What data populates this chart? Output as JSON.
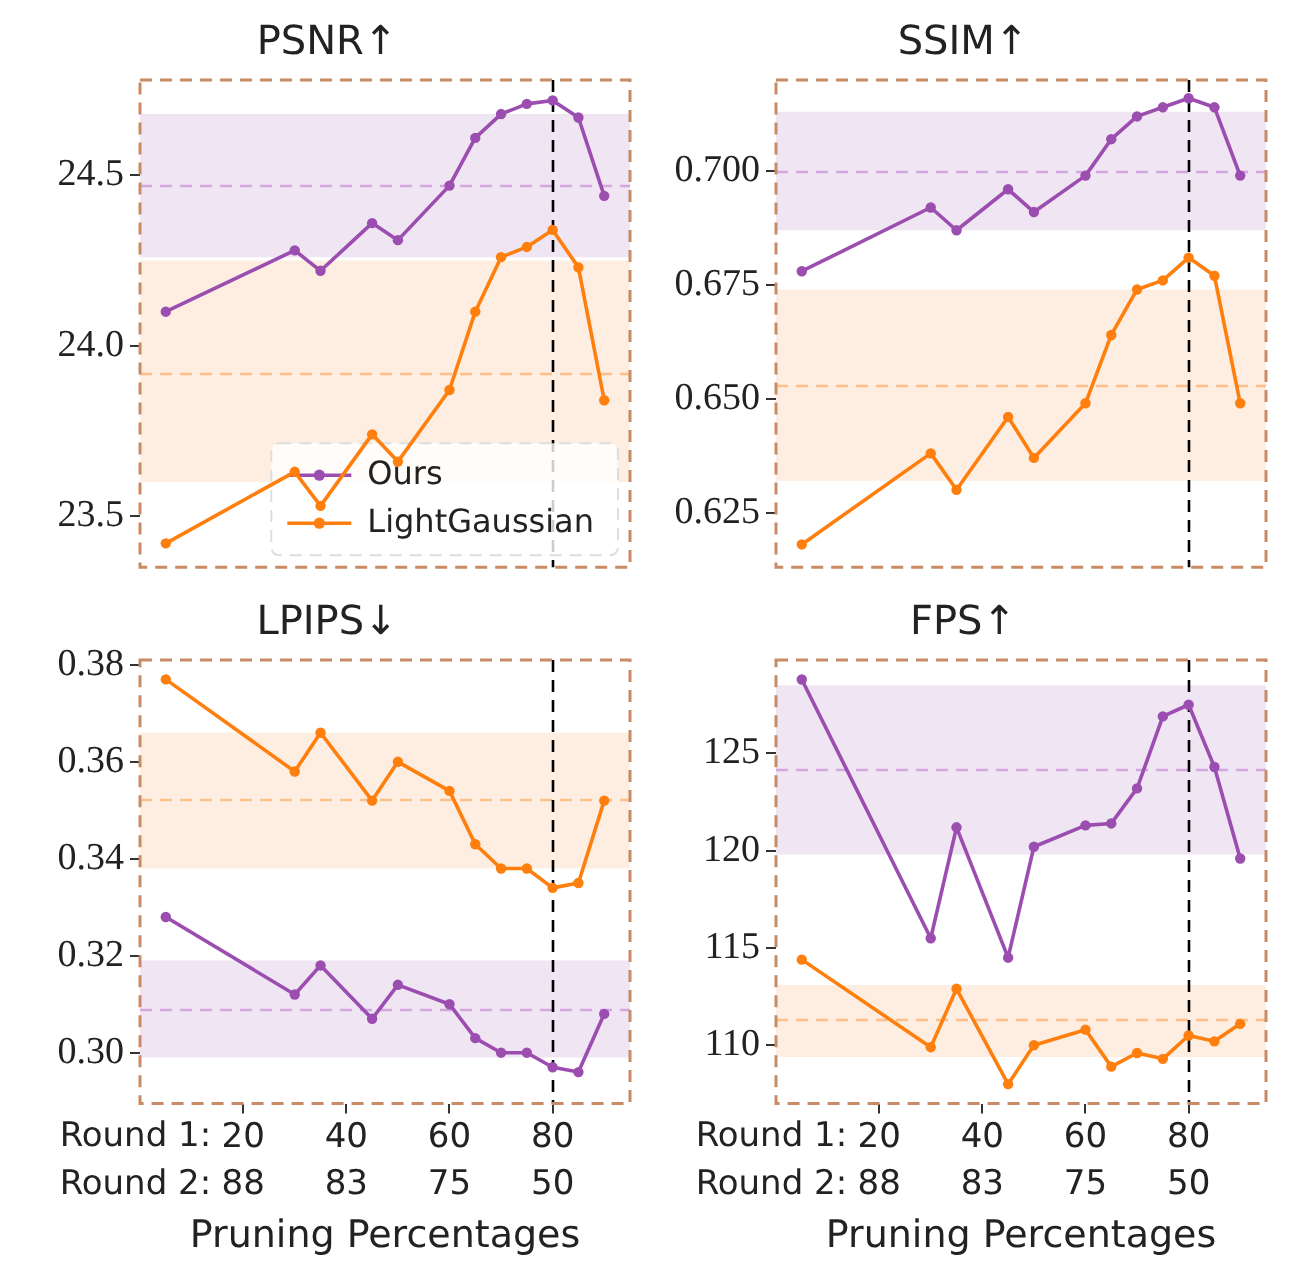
{
  "chart_data": [
    {
      "type": "line",
      "title": "PSNR↑",
      "x": [
        5,
        30,
        35,
        45,
        50,
        60,
        65,
        70,
        75,
        80,
        85,
        90
      ],
      "xlim": [
        0,
        95
      ],
      "xticks": [
        20,
        40,
        60,
        80
      ],
      "ylim": [
        23.35,
        24.78
      ],
      "yticks": [
        {
          "value": 23.5,
          "label": "23.5"
        },
        {
          "value": 24.0,
          "label": "24.0"
        },
        {
          "value": 24.5,
          "label": "24.5"
        }
      ],
      "tick_labels": "y",
      "grid": false,
      "marker": "circle",
      "legend": "bottom right",
      "series": [
        {
          "name": "Ours",
          "color": "#9b4db0",
          "values": [
            24.1,
            24.28,
            24.22,
            24.36,
            24.31,
            24.47,
            24.61,
            24.68,
            24.71,
            24.72,
            24.67,
            24.44
          ]
        },
        {
          "name": "LightGaussian",
          "color": "#ff7f0e",
          "values": [
            23.42,
            23.63,
            23.53,
            23.74,
            23.66,
            23.87,
            24.1,
            24.26,
            24.29,
            24.34,
            24.23,
            23.84
          ]
        }
      ],
      "bands": [
        {
          "axis": "y",
          "from": 24.26,
          "to": 24.68,
          "color": "#efe5f3"
        },
        {
          "axis": "y",
          "from": 23.6,
          "to": 24.25,
          "color": "#fdeee1"
        }
      ],
      "ref_lines": [
        {
          "axis": "y",
          "value": 24.47,
          "color": "#d4a6e0",
          "line_style": "dashed"
        },
        {
          "axis": "y",
          "value": 23.92,
          "color": "#ffbf8a",
          "line_style": "dashed"
        },
        {
          "axis": "x",
          "value": 80,
          "color": "#000000",
          "line_style": "dashed"
        }
      ]
    },
    {
      "type": "line",
      "title": "SSIM↑",
      "x": [
        5,
        30,
        35,
        45,
        50,
        60,
        65,
        70,
        75,
        80,
        85,
        90
      ],
      "xlim": [
        0,
        95
      ],
      "xticks": [
        20,
        40,
        60,
        80
      ],
      "ylim": [
        0.613,
        0.72
      ],
      "yticks": [
        {
          "value": 0.625,
          "label": "0.625"
        },
        {
          "value": 0.65,
          "label": "0.650"
        },
        {
          "value": 0.675,
          "label": "0.675"
        },
        {
          "value": 0.7,
          "label": "0.700"
        }
      ],
      "tick_labels": "y",
      "grid": false,
      "marker": "circle",
      "series": [
        {
          "color": "#9b4db0",
          "values": [
            0.678,
            0.692,
            0.687,
            0.696,
            0.691,
            0.699,
            0.707,
            0.712,
            0.714,
            0.716,
            0.714,
            0.699
          ]
        },
        {
          "color": "#ff7f0e",
          "values": [
            0.618,
            0.638,
            0.63,
            0.646,
            0.637,
            0.649,
            0.664,
            0.674,
            0.676,
            0.681,
            0.677,
            0.649
          ]
        }
      ],
      "bands": [
        {
          "axis": "y",
          "from": 0.687,
          "to": 0.713,
          "color": "#efe5f3"
        },
        {
          "axis": "y",
          "from": 0.632,
          "to": 0.674,
          "color": "#fdeee1"
        }
      ],
      "ref_lines": [
        {
          "axis": "y",
          "value": 0.7,
          "color": "#d4a6e0",
          "line_style": "dashed"
        },
        {
          "axis": "y",
          "value": 0.653,
          "color": "#ffbf8a",
          "line_style": "dashed"
        },
        {
          "axis": "x",
          "value": 80,
          "color": "#000000",
          "line_style": "dashed"
        }
      ]
    },
    {
      "type": "line",
      "title": "LPIPS↓",
      "xlabel": "Pruning Percentages",
      "x": [
        5,
        30,
        35,
        45,
        50,
        60,
        65,
        70,
        75,
        80,
        85,
        90
      ],
      "xlim": [
        0,
        95
      ],
      "xticks": [
        20,
        40,
        60,
        80
      ],
      "ylim": [
        0.2895,
        0.381
      ],
      "yticks": [
        {
          "value": 0.3,
          "label": "0.30"
        },
        {
          "value": 0.32,
          "label": "0.32"
        },
        {
          "value": 0.34,
          "label": "0.34"
        },
        {
          "value": 0.36,
          "label": "0.36"
        },
        {
          "value": 0.38,
          "label": "0.38"
        }
      ],
      "grid": false,
      "marker": "circle",
      "annotations": [
        "Round 1:",
        "Round 2:",
        "88",
        "83",
        "75",
        "50"
      ],
      "series": [
        {
          "color": "#9b4db0",
          "values": [
            0.328,
            0.312,
            0.318,
            0.307,
            0.314,
            0.31,
            0.303,
            0.3,
            0.3,
            0.297,
            0.296,
            0.308
          ]
        },
        {
          "color": "#ff7f0e",
          "values": [
            0.377,
            0.358,
            0.366,
            0.352,
            0.36,
            0.354,
            0.343,
            0.338,
            0.338,
            0.334,
            0.335,
            0.352
          ]
        }
      ],
      "bands": [
        {
          "axis": "y",
          "from": 0.299,
          "to": 0.319,
          "color": "#efe5f3"
        },
        {
          "axis": "y",
          "from": 0.338,
          "to": 0.366,
          "color": "#fdeee1"
        }
      ],
      "ref_lines": [
        {
          "axis": "y",
          "value": 0.309,
          "color": "#d4a6e0",
          "line_style": "dashed"
        },
        {
          "axis": "y",
          "value": 0.352,
          "color": "#ffbf8a",
          "line_style": "dashed"
        },
        {
          "axis": "x",
          "value": 80,
          "color": "#000000",
          "line_style": "dashed"
        }
      ]
    },
    {
      "type": "line",
      "title": "FPS↑",
      "xlabel": "Pruning Percentages",
      "x": [
        5,
        30,
        35,
        45,
        50,
        60,
        65,
        70,
        75,
        80,
        85,
        90
      ],
      "xlim": [
        0,
        95
      ],
      "xticks": [
        20,
        40,
        60,
        80
      ],
      "ylim": [
        107,
        129.8
      ],
      "yticks": [
        110,
        115,
        120,
        125
      ],
      "grid": false,
      "marker": "circle",
      "annotations": [
        "Round 1:",
        "Round 2:",
        "88",
        "83",
        "75",
        "50"
      ],
      "series": [
        {
          "color": "#9b4db0",
          "values": [
            128.8,
            115.5,
            121.2,
            114.5,
            120.2,
            121.3,
            121.4,
            123.2,
            126.9,
            127.5,
            124.3,
            119.6
          ]
        },
        {
          "color": "#ff7f0e",
          "values": [
            114.4,
            109.9,
            112.9,
            108.0,
            110.0,
            110.8,
            108.9,
            109.6,
            109.3,
            110.5,
            110.2,
            111.1
          ]
        }
      ],
      "bands": [
        {
          "axis": "y",
          "from": 119.8,
          "to": 128.5,
          "color": "#efe5f3"
        },
        {
          "axis": "y",
          "from": 109.4,
          "to": 113.1,
          "color": "#fdeee1"
        }
      ],
      "ref_lines": [
        {
          "axis": "y",
          "value": 124.1,
          "color": "#d4a6e0",
          "line_style": "dashed"
        },
        {
          "axis": "y",
          "value": 111.3,
          "color": "#ffbf8a",
          "line_style": "dashed"
        },
        {
          "axis": "x",
          "value": 80,
          "color": "#000000",
          "line_style": "dashed"
        }
      ]
    }
  ]
}
